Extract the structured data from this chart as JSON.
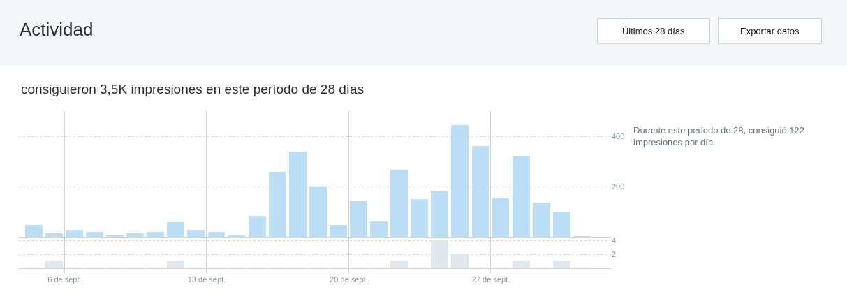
{
  "chart_data": [
    {
      "type": "bar",
      "title": "Actividad",
      "subtitle": "consiguieron 3,5K impresiones en este período de 28 días",
      "annotations": [
        "Últimos 28 días",
        "Exportar datos",
        "Durante este periodo de 28, consiguió 122 impresiones por día."
      ],
      "x": [
        "--09-04T12:00",
        "--09-05T12:00",
        "--09-06T12:00",
        "--09-07T12:00",
        "--09-08T12:00",
        "--09-09T12:00",
        "--09-10T12:00",
        "--09-11T12:00",
        "--09-12T12:00",
        "--09-13T12:00",
        "--09-14T12:00",
        "--09-15T12:00",
        "--09-16T12:00",
        "--09-17T12:00",
        "--09-18T12:00",
        "--09-19T12:00",
        "--09-20T12:00",
        "--09-21T12:00",
        "--09-22T12:00",
        "--09-23T12:00",
        "--09-24T12:00",
        "--09-25T12:00",
        "--09-26T12:00",
        "--09-27T12:00",
        "--09-28T12:00",
        "--09-29T12:00",
        "--09-30T12:00",
        "--10-01T12:00"
      ],
      "values": [
        45,
        12,
        26,
        18,
        4,
        12,
        18,
        56,
        26,
        18,
        6,
        81,
        256,
        337,
        199,
        45,
        140,
        59,
        265,
        148,
        179,
        443,
        359,
        151,
        318,
        134,
        95,
        0
      ],
      "colors": [
        "#bbddf5",
        "#bbddf5",
        "#bbddf5",
        "#bbddf5",
        "#bbddf5",
        "#bbddf5",
        "#bbddf5",
        "#bbddf5",
        "#bbddf5",
        "#bbddf5",
        "#bbddf5",
        "#bbddf5",
        "#bbddf5",
        "#bbddf5",
        "#bbddf5",
        "#bbddf5",
        "#bbddf5",
        "#bbddf5",
        "#bbddf5",
        "#bbddf5",
        "#bbddf5",
        "#bbddf5",
        "#bbddf5",
        "#bbddf5",
        "#bbddf5",
        "#bbddf5",
        "#bbddf5",
        "#ccd6dd"
      ],
      "xlim": [
        "--09-03T18:00",
        "--10-02T22:00"
      ],
      "xticks": [
        {
          "value": "--09-06",
          "label": null
        },
        {
          "value": "--09-13",
          "label": null
        },
        {
          "value": "--09-20",
          "label": null
        },
        {
          "value": "--09-27",
          "label": null
        }
      ],
      "ylim": [
        0,
        500
      ],
      "yticks": [
        200,
        400
      ],
      "grid": true,
      "tick_labels": "y"
    },
    {
      "type": "bar",
      "x": [
        "--09-04T12:00",
        "--09-05T12:00",
        "--09-06T12:00",
        "--09-07T12:00",
        "--09-08T12:00",
        "--09-09T12:00",
        "--09-10T12:00",
        "--09-11T12:00",
        "--09-12T12:00",
        "--09-13T12:00",
        "--09-14T12:00",
        "--09-15T12:00",
        "--09-16T12:00",
        "--09-17T12:00",
        "--09-18T12:00",
        "--09-19T12:00",
        "--09-20T12:00",
        "--09-21T12:00",
        "--09-22T12:00",
        "--09-23T12:00",
        "--09-24T12:00",
        "--09-25T12:00",
        "--09-26T12:00",
        "--09-27T12:00",
        "--09-28T12:00",
        "--09-29T12:00",
        "--09-30T12:00",
        "--10-01T12:00"
      ],
      "values": [
        0,
        1,
        0,
        0,
        0,
        0,
        0,
        1,
        0,
        0,
        0,
        0,
        0,
        0,
        0,
        0,
        0,
        0,
        1,
        0,
        4,
        2,
        0,
        0,
        1,
        0,
        1,
        0
      ],
      "colors": [
        "#ccd6dd",
        "#e1e8ed",
        "#ccd6dd",
        "#ccd6dd",
        "#ccd6dd",
        "#ccd6dd",
        "#ccd6dd",
        "#e1e8ed",
        "#ccd6dd",
        "#ccd6dd",
        "#ccd6dd",
        "#ccd6dd",
        "#ccd6dd",
        "#ccd6dd",
        "#ccd6dd",
        "#ccd6dd",
        "#ccd6dd",
        "#ccd6dd",
        "#e1e8ed",
        "#ccd6dd",
        "#e1e8ed",
        "#e1e8ed",
        "#ccd6dd",
        "#ccd6dd",
        "#e1e8ed",
        "#ccd6dd",
        "#e1e8ed",
        "#ccd6dd"
      ],
      "xlim": [
        "--09-03T18:00",
        "--10-02T22:00"
      ],
      "xticks": [
        {
          "value": "--09-06",
          "label": "6 de sept."
        },
        {
          "value": "--09-13",
          "label": "13 de sept."
        },
        {
          "value": "--09-20",
          "label": "20 de sept."
        },
        {
          "value": "--09-27",
          "label": "27 de sept."
        }
      ],
      "ylim": [
        0,
        4.5
      ],
      "yticks": [
        2,
        4
      ],
      "grid": true
    }
  ]
}
